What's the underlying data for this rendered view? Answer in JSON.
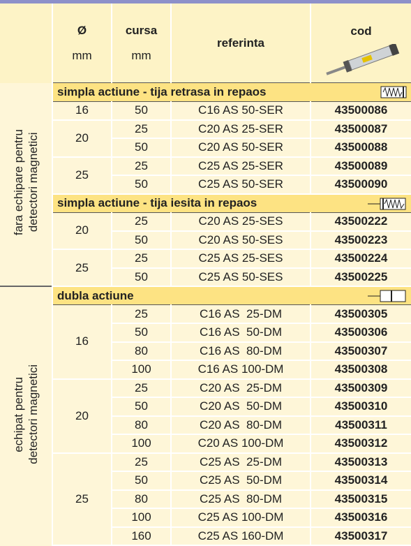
{
  "header": {
    "diameter": "Ø",
    "diameter_unit": "mm",
    "stroke": "cursa",
    "stroke_unit": "mm",
    "reference": "referinta",
    "code": "cod"
  },
  "groups": [
    {
      "label": [
        "fara echipare pentru",
        "detectori magnetici"
      ],
      "sections": [
        {
          "title": "simpla actiune - tija retrasa in repaos",
          "diameters": [
            {
              "d": "16",
              "rows": [
                [
                  "50",
                  "C16 AS 50-SER",
                  "43500086"
                ]
              ]
            },
            {
              "d": "20",
              "rows": [
                [
                  "25",
                  "C20 AS 25-SER",
                  "43500087"
                ],
                [
                  "50",
                  "C20 AS 50-SER",
                  "43500088"
                ]
              ]
            },
            {
              "d": "25",
              "rows": [
                [
                  "25",
                  "C25 AS 25-SER",
                  "43500089"
                ],
                [
                  "50",
                  "C25 AS 50-SER",
                  "43500090"
                ]
              ]
            }
          ]
        },
        {
          "title": "simpla actiune - tija iesita in repaos",
          "diameters": [
            {
              "d": "20",
              "rows": [
                [
                  "25",
                  "C20 AS 25-SES",
                  "43500222"
                ],
                [
                  "50",
                  "C20 AS 50-SES",
                  "43500223"
                ]
              ]
            },
            {
              "d": "25",
              "rows": [
                [
                  "25",
                  "C25 AS 25-SES",
                  "43500224"
                ],
                [
                  "50",
                  "C25 AS 50-SES",
                  "43500225"
                ]
              ]
            }
          ]
        }
      ]
    },
    {
      "label": [
        "echipat pentru",
        "detectori magnetici"
      ],
      "sections": [
        {
          "title": "dubla actiune",
          "diameters": [
            {
              "d": "16",
              "rows": [
                [
                  "25",
                  "C16 AS  25-DM",
                  "43500305"
                ],
                [
                  "50",
                  "C16 AS  50-DM",
                  "43500306"
                ],
                [
                  "80",
                  "C16 AS  80-DM",
                  "43500307"
                ],
                [
                  "100",
                  "C16 AS 100-DM",
                  "43500308"
                ]
              ]
            },
            {
              "d": "20",
              "rows": [
                [
                  "25",
                  "C20 AS  25-DM",
                  "43500309"
                ],
                [
                  "50",
                  "C20 AS  50-DM",
                  "43500310"
                ],
                [
                  "80",
                  "C20 AS  80-DM",
                  "43500311"
                ],
                [
                  "100",
                  "C20 AS 100-DM",
                  "43500312"
                ]
              ]
            },
            {
              "d": "25",
              "rows": [
                [
                  "25",
                  "C25 AS  25-DM",
                  "43500313"
                ],
                [
                  "50",
                  "C25 AS  50-DM",
                  "43500314"
                ],
                [
                  "80",
                  "C25 AS  80-DM",
                  "43500315"
                ],
                [
                  "100",
                  "C25 AS 100-DM",
                  "43500316"
                ],
                [
                  "160",
                  "C25 AS 160-DM",
                  "43500317"
                ]
              ]
            }
          ]
        }
      ]
    }
  ]
}
